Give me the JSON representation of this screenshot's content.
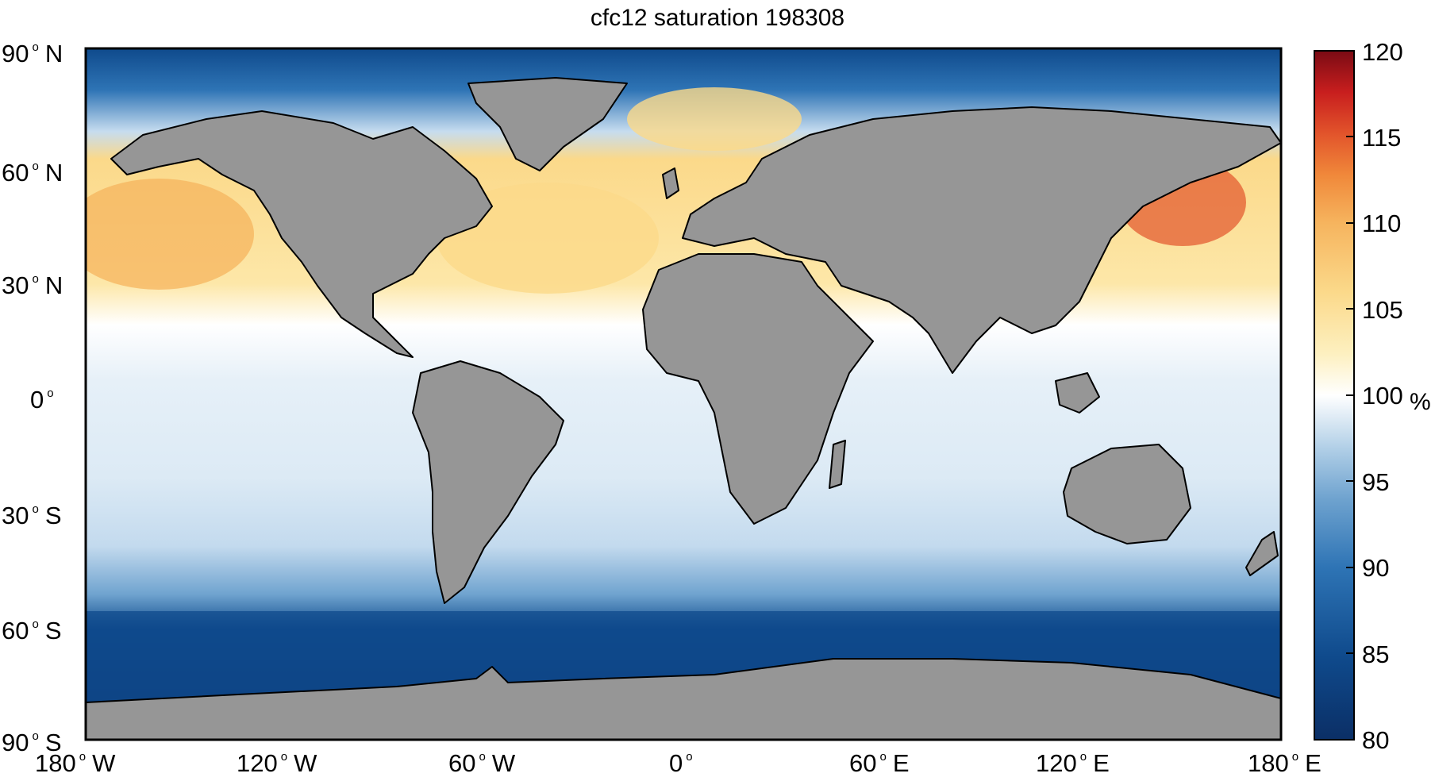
{
  "title": "cfc12 saturation 198308",
  "lat_labels": [
    {
      "value": "90",
      "dir": "N"
    },
    {
      "value": "60",
      "dir": "N"
    },
    {
      "value": "30",
      "dir": "N"
    },
    {
      "value": "0",
      "dir": ""
    },
    {
      "value": "30",
      "dir": "S"
    },
    {
      "value": "60",
      "dir": "S"
    },
    {
      "value": "90",
      "dir": "S"
    }
  ],
  "lon_labels": [
    {
      "value": "180",
      "dir": "W"
    },
    {
      "value": "120",
      "dir": "W"
    },
    {
      "value": "60",
      "dir": "W"
    },
    {
      "value": "0",
      "dir": ""
    },
    {
      "value": "60",
      "dir": "E"
    },
    {
      "value": "120",
      "dir": "E"
    },
    {
      "value": "180",
      "dir": "E"
    }
  ],
  "colorbar": {
    "ticks": [
      "120",
      "115",
      "110",
      "105",
      "100",
      "95",
      "90",
      "85",
      "80"
    ],
    "unit": "%",
    "range": [
      80,
      120
    ],
    "colors_low_to_high": [
      "#0b2f66",
      "#0f4a8c",
      "#2e74b5",
      "#6fa3cf",
      "#aecde6",
      "#dceaf5",
      "#ffffff",
      "#fdf0c0",
      "#fbd98a",
      "#f6b45e",
      "#f0883a",
      "#e2542b",
      "#c81e1e",
      "#7a0b14"
    ]
  },
  "colors": {
    "land": "#969696",
    "frame": "#000000"
  }
}
